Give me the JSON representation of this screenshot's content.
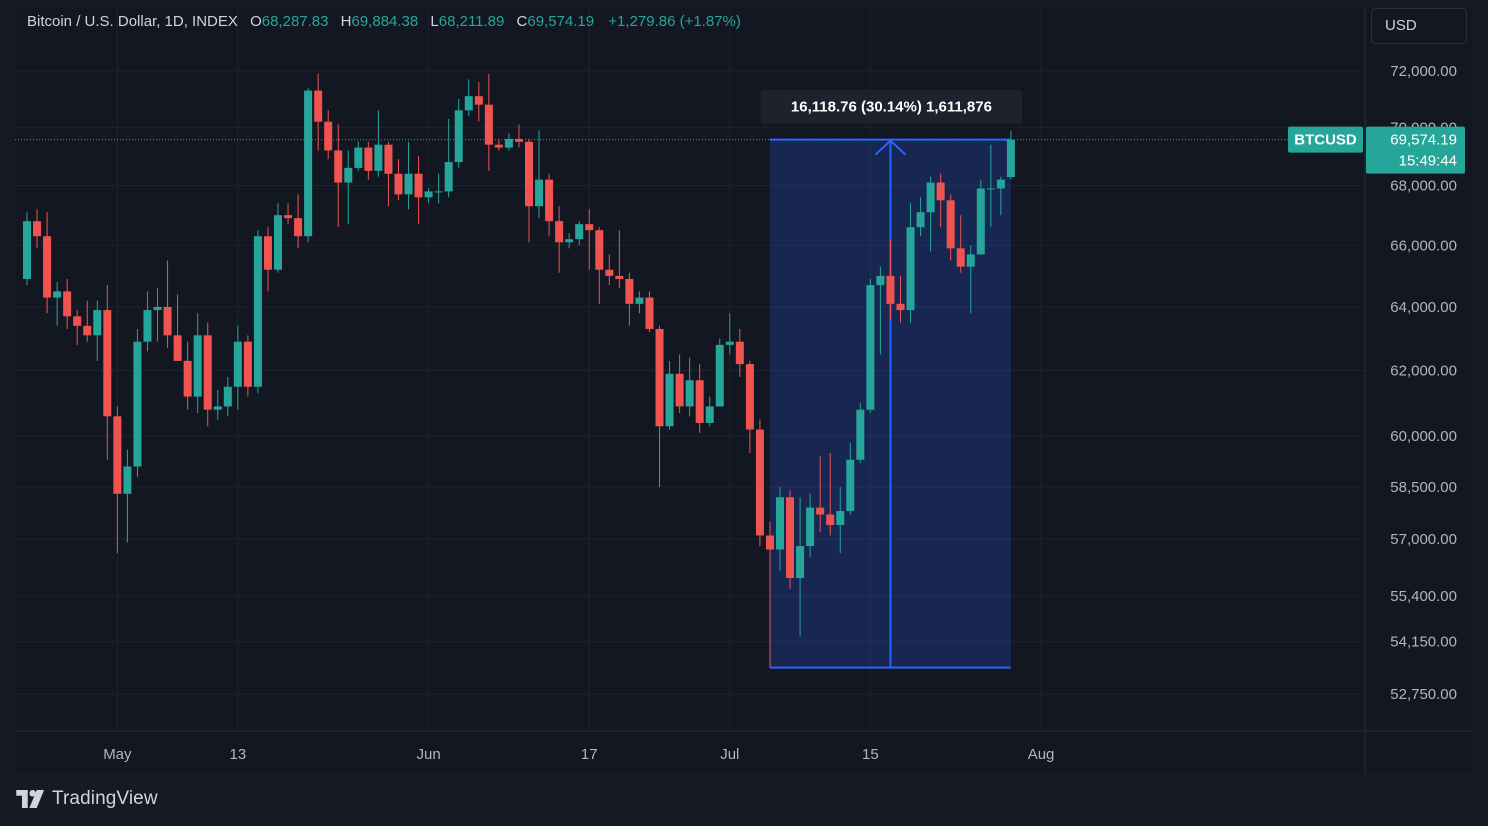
{
  "legend": {
    "symbol": "Bitcoin / U.S. Dollar, 1D, INDEX",
    "open_label": "O",
    "open": "68,287.83",
    "high_label": "H",
    "high": "69,884.38",
    "low_label": "L",
    "low": "68,211.89",
    "close_label": "C",
    "close": "69,574.19",
    "change": "+1,279.86 (+1.87%)"
  },
  "currency_button": "USD",
  "brand": "TradingView",
  "colors": {
    "background": "#131722",
    "up": "#26a69a",
    "down": "#f05350",
    "grid": "#1e222d",
    "measure": "#2962ff"
  },
  "chart_data": {
    "type": "candlestick",
    "series_label": "BTCUSD",
    "price_label": "69,574.19",
    "countdown": "15:49:44",
    "last_price": 69574.19,
    "measurement": {
      "label": "16,118.76 (30.14%) 1,611,876",
      "from_price": 53455.43,
      "to_price": 69574.19,
      "from_date": "2024-07-05",
      "to_date": "2024-07-29"
    },
    "y_ticks": [
      {
        "value": 72000,
        "label": "72,000.00"
      },
      {
        "value": 70000,
        "label": "70,000.00"
      },
      {
        "value": 68000,
        "label": "68,000.00"
      },
      {
        "value": 66000,
        "label": "66,000.00"
      },
      {
        "value": 64000,
        "label": "64,000.00"
      },
      {
        "value": 62000,
        "label": "62,000.00"
      },
      {
        "value": 60000,
        "label": "60,000.00"
      },
      {
        "value": 58500,
        "label": "58,500.00"
      },
      {
        "value": 57000,
        "label": "57,000.00"
      },
      {
        "value": 55400,
        "label": "55,400.00"
      },
      {
        "value": 54150,
        "label": "54,150.00"
      },
      {
        "value": 52750,
        "label": "52,750.00"
      }
    ],
    "x_ticks": [
      {
        "date": "2024-05-01",
        "label": "May"
      },
      {
        "date": "2024-05-13",
        "label": "13"
      },
      {
        "date": "2024-06-01",
        "label": "Jun"
      },
      {
        "date": "2024-06-17",
        "label": "17"
      },
      {
        "date": "2024-07-01",
        "label": "Jul"
      },
      {
        "date": "2024-07-15",
        "label": "15"
      },
      {
        "date": "2024-08-01",
        "label": "Aug"
      }
    ],
    "candles": [
      {
        "date": "2024-04-22",
        "o": 64900,
        "h": 67100,
        "l": 64700,
        "c": 66800
      },
      {
        "date": "2024-04-23",
        "o": 66800,
        "h": 67200,
        "l": 65900,
        "c": 66300
      },
      {
        "date": "2024-04-24",
        "o": 66300,
        "h": 67100,
        "l": 63800,
        "c": 64300
      },
      {
        "date": "2024-04-25",
        "o": 64300,
        "h": 64800,
        "l": 63400,
        "c": 64500
      },
      {
        "date": "2024-04-26",
        "o": 64500,
        "h": 64900,
        "l": 63300,
        "c": 63700
      },
      {
        "date": "2024-04-27",
        "o": 63700,
        "h": 63900,
        "l": 62800,
        "c": 63400
      },
      {
        "date": "2024-04-28",
        "o": 63400,
        "h": 64200,
        "l": 62900,
        "c": 63100
      },
      {
        "date": "2024-04-29",
        "o": 63100,
        "h": 64200,
        "l": 62300,
        "c": 63900
      },
      {
        "date": "2024-04-30",
        "o": 63900,
        "h": 64700,
        "l": 59300,
        "c": 60600
      },
      {
        "date": "2024-05-01",
        "o": 60600,
        "h": 60900,
        "l": 56600,
        "c": 58300
      },
      {
        "date": "2024-05-02",
        "o": 58300,
        "h": 59600,
        "l": 56900,
        "c": 59100
      },
      {
        "date": "2024-05-03",
        "o": 59100,
        "h": 63300,
        "l": 58800,
        "c": 62900
      },
      {
        "date": "2024-05-04",
        "o": 62900,
        "h": 64500,
        "l": 62600,
        "c": 63900
      },
      {
        "date": "2024-05-05",
        "o": 63900,
        "h": 64600,
        "l": 62900,
        "c": 64000
      },
      {
        "date": "2024-05-06",
        "o": 64000,
        "h": 65500,
        "l": 62700,
        "c": 63100
      },
      {
        "date": "2024-05-07",
        "o": 63100,
        "h": 64400,
        "l": 62300,
        "c": 62300
      },
      {
        "date": "2024-05-08",
        "o": 62300,
        "h": 62900,
        "l": 60800,
        "c": 61200
      },
      {
        "date": "2024-05-09",
        "o": 61200,
        "h": 63800,
        "l": 60700,
        "c": 63100
      },
      {
        "date": "2024-05-10",
        "o": 63100,
        "h": 63500,
        "l": 60300,
        "c": 60800
      },
      {
        "date": "2024-05-11",
        "o": 60800,
        "h": 61400,
        "l": 60500,
        "c": 60900
      },
      {
        "date": "2024-05-12",
        "o": 60900,
        "h": 61800,
        "l": 60600,
        "c": 61500
      },
      {
        "date": "2024-05-13",
        "o": 61500,
        "h": 63400,
        "l": 60800,
        "c": 62900
      },
      {
        "date": "2024-05-14",
        "o": 62900,
        "h": 63100,
        "l": 61200,
        "c": 61500
      },
      {
        "date": "2024-05-15",
        "o": 61500,
        "h": 66500,
        "l": 61300,
        "c": 66300
      },
      {
        "date": "2024-05-16",
        "o": 66300,
        "h": 66600,
        "l": 64500,
        "c": 65200
      },
      {
        "date": "2024-05-17",
        "o": 65200,
        "h": 67400,
        "l": 65100,
        "c": 67000
      },
      {
        "date": "2024-05-18",
        "o": 67000,
        "h": 67400,
        "l": 66700,
        "c": 66900
      },
      {
        "date": "2024-05-19",
        "o": 66900,
        "h": 67700,
        "l": 65900,
        "c": 66300
      },
      {
        "date": "2024-05-20",
        "o": 66300,
        "h": 71400,
        "l": 66100,
        "c": 71300
      },
      {
        "date": "2024-05-21",
        "o": 71300,
        "h": 71900,
        "l": 69200,
        "c": 70200
      },
      {
        "date": "2024-05-22",
        "o": 70200,
        "h": 70600,
        "l": 68900,
        "c": 69200
      },
      {
        "date": "2024-05-23",
        "o": 69200,
        "h": 70100,
        "l": 66600,
        "c": 68100
      },
      {
        "date": "2024-05-24",
        "o": 68100,
        "h": 69200,
        "l": 66700,
        "c": 68600
      },
      {
        "date": "2024-05-25",
        "o": 68600,
        "h": 69500,
        "l": 68500,
        "c": 69300
      },
      {
        "date": "2024-05-26",
        "o": 69300,
        "h": 69500,
        "l": 68200,
        "c": 68500
      },
      {
        "date": "2024-05-27",
        "o": 68500,
        "h": 70600,
        "l": 68300,
        "c": 69400
      },
      {
        "date": "2024-05-28",
        "o": 69400,
        "h": 69500,
        "l": 67300,
        "c": 68400
      },
      {
        "date": "2024-05-29",
        "o": 68400,
        "h": 68900,
        "l": 67500,
        "c": 67700
      },
      {
        "date": "2024-05-30",
        "o": 67700,
        "h": 69500,
        "l": 67200,
        "c": 68400
      },
      {
        "date": "2024-05-31",
        "o": 68400,
        "h": 69000,
        "l": 66700,
        "c": 67600
      },
      {
        "date": "2024-06-01",
        "o": 67600,
        "h": 67900,
        "l": 67400,
        "c": 67800
      },
      {
        "date": "2024-06-02",
        "o": 67800,
        "h": 68400,
        "l": 67400,
        "c": 67800
      },
      {
        "date": "2024-06-03",
        "o": 67800,
        "h": 70300,
        "l": 67600,
        "c": 68800
      },
      {
        "date": "2024-06-04",
        "o": 68800,
        "h": 71000,
        "l": 68600,
        "c": 70600
      },
      {
        "date": "2024-06-05",
        "o": 70600,
        "h": 71700,
        "l": 70400,
        "c": 71100
      },
      {
        "date": "2024-06-06",
        "o": 71100,
        "h": 71600,
        "l": 70200,
        "c": 70800
      },
      {
        "date": "2024-06-07",
        "o": 70800,
        "h": 71900,
        "l": 68500,
        "c": 69400
      },
      {
        "date": "2024-06-08",
        "o": 69400,
        "h": 69600,
        "l": 69200,
        "c": 69300
      },
      {
        "date": "2024-06-09",
        "o": 69300,
        "h": 69800,
        "l": 69200,
        "c": 69600
      },
      {
        "date": "2024-06-10",
        "o": 69600,
        "h": 70100,
        "l": 69300,
        "c": 69500
      },
      {
        "date": "2024-06-11",
        "o": 69500,
        "h": 69600,
        "l": 66100,
        "c": 67300
      },
      {
        "date": "2024-06-12",
        "o": 67300,
        "h": 69900,
        "l": 66900,
        "c": 68200
      },
      {
        "date": "2024-06-13",
        "o": 68200,
        "h": 68400,
        "l": 66300,
        "c": 66800
      },
      {
        "date": "2024-06-14",
        "o": 66800,
        "h": 67300,
        "l": 65100,
        "c": 66100
      },
      {
        "date": "2024-06-15",
        "o": 66100,
        "h": 66400,
        "l": 65900,
        "c": 66200
      },
      {
        "date": "2024-06-16",
        "o": 66200,
        "h": 66800,
        "l": 66000,
        "c": 66700
      },
      {
        "date": "2024-06-17",
        "o": 66700,
        "h": 67200,
        "l": 65200,
        "c": 66500
      },
      {
        "date": "2024-06-18",
        "o": 66500,
        "h": 66600,
        "l": 64100,
        "c": 65200
      },
      {
        "date": "2024-06-19",
        "o": 65200,
        "h": 65700,
        "l": 64700,
        "c": 65000
      },
      {
        "date": "2024-06-20",
        "o": 65000,
        "h": 66500,
        "l": 64600,
        "c": 64900
      },
      {
        "date": "2024-06-21",
        "o": 64900,
        "h": 65100,
        "l": 63400,
        "c": 64100
      },
      {
        "date": "2024-06-22",
        "o": 64100,
        "h": 64500,
        "l": 63800,
        "c": 64300
      },
      {
        "date": "2024-06-23",
        "o": 64300,
        "h": 64500,
        "l": 63200,
        "c": 63300
      },
      {
        "date": "2024-06-24",
        "o": 63300,
        "h": 63400,
        "l": 58500,
        "c": 60300
      },
      {
        "date": "2024-06-25",
        "o": 60300,
        "h": 62300,
        "l": 60200,
        "c": 61900
      },
      {
        "date": "2024-06-26",
        "o": 61900,
        "h": 62500,
        "l": 60700,
        "c": 60900
      },
      {
        "date": "2024-06-27",
        "o": 60900,
        "h": 62400,
        "l": 60600,
        "c": 61700
      },
      {
        "date": "2024-06-28",
        "o": 61700,
        "h": 62200,
        "l": 60100,
        "c": 60400
      },
      {
        "date": "2024-06-29",
        "o": 60400,
        "h": 61200,
        "l": 60300,
        "c": 60900
      },
      {
        "date": "2024-06-30",
        "o": 60900,
        "h": 63000,
        "l": 60900,
        "c": 62800
      },
      {
        "date": "2024-07-01",
        "o": 62800,
        "h": 63800,
        "l": 62500,
        "c": 62900
      },
      {
        "date": "2024-07-02",
        "o": 62900,
        "h": 63300,
        "l": 61800,
        "c": 62200
      },
      {
        "date": "2024-07-03",
        "o": 62200,
        "h": 62300,
        "l": 59500,
        "c": 60200
      },
      {
        "date": "2024-07-04",
        "o": 60200,
        "h": 60500,
        "l": 56800,
        "c": 57100
      },
      {
        "date": "2024-07-05",
        "o": 57100,
        "h": 57500,
        "l": 53455,
        "c": 56700
      },
      {
        "date": "2024-07-06",
        "o": 56700,
        "h": 58500,
        "l": 56100,
        "c": 58200
      },
      {
        "date": "2024-07-07",
        "o": 58200,
        "h": 58400,
        "l": 55600,
        "c": 55900
      },
      {
        "date": "2024-07-08",
        "o": 55900,
        "h": 58200,
        "l": 54300,
        "c": 56800
      },
      {
        "date": "2024-07-09",
        "o": 56800,
        "h": 58300,
        "l": 56500,
        "c": 57900
      },
      {
        "date": "2024-07-10",
        "o": 57900,
        "h": 59400,
        "l": 57200,
        "c": 57700
      },
      {
        "date": "2024-07-11",
        "o": 57700,
        "h": 59500,
        "l": 57100,
        "c": 57400
      },
      {
        "date": "2024-07-12",
        "o": 57400,
        "h": 58500,
        "l": 56600,
        "c": 57800
      },
      {
        "date": "2024-07-13",
        "o": 57800,
        "h": 59800,
        "l": 57700,
        "c": 59300
      },
      {
        "date": "2024-07-14",
        "o": 59300,
        "h": 61000,
        "l": 59200,
        "c": 60800
      },
      {
        "date": "2024-07-15",
        "o": 60800,
        "h": 64900,
        "l": 60700,
        "c": 64700
      },
      {
        "date": "2024-07-16",
        "o": 64700,
        "h": 65300,
        "l": 62500,
        "c": 65000
      },
      {
        "date": "2024-07-17",
        "o": 65000,
        "h": 66200,
        "l": 63600,
        "c": 64100
      },
      {
        "date": "2024-07-18",
        "o": 64100,
        "h": 65000,
        "l": 63500,
        "c": 63900
      },
      {
        "date": "2024-07-19",
        "o": 63900,
        "h": 67400,
        "l": 63500,
        "c": 66600
      },
      {
        "date": "2024-07-20",
        "o": 66600,
        "h": 67600,
        "l": 66300,
        "c": 67100
      },
      {
        "date": "2024-07-21",
        "o": 67100,
        "h": 68300,
        "l": 65800,
        "c": 68100
      },
      {
        "date": "2024-07-22",
        "o": 68100,
        "h": 68400,
        "l": 66600,
        "c": 67500
      },
      {
        "date": "2024-07-23",
        "o": 67500,
        "h": 67700,
        "l": 65500,
        "c": 65900
      },
      {
        "date": "2024-07-24",
        "o": 65900,
        "h": 67000,
        "l": 65100,
        "c": 65300
      },
      {
        "date": "2024-07-25",
        "o": 65300,
        "h": 66000,
        "l": 63800,
        "c": 65700
      },
      {
        "date": "2024-07-26",
        "o": 65700,
        "h": 68200,
        "l": 65700,
        "c": 67900
      },
      {
        "date": "2024-07-27",
        "o": 67900,
        "h": 69400,
        "l": 66600,
        "c": 67900
      },
      {
        "date": "2024-07-28",
        "o": 67900,
        "h": 68300,
        "l": 67000,
        "c": 68200
      },
      {
        "date": "2024-07-29",
        "o": 68287.83,
        "h": 69884.38,
        "l": 68211.89,
        "c": 69574.19
      }
    ]
  }
}
